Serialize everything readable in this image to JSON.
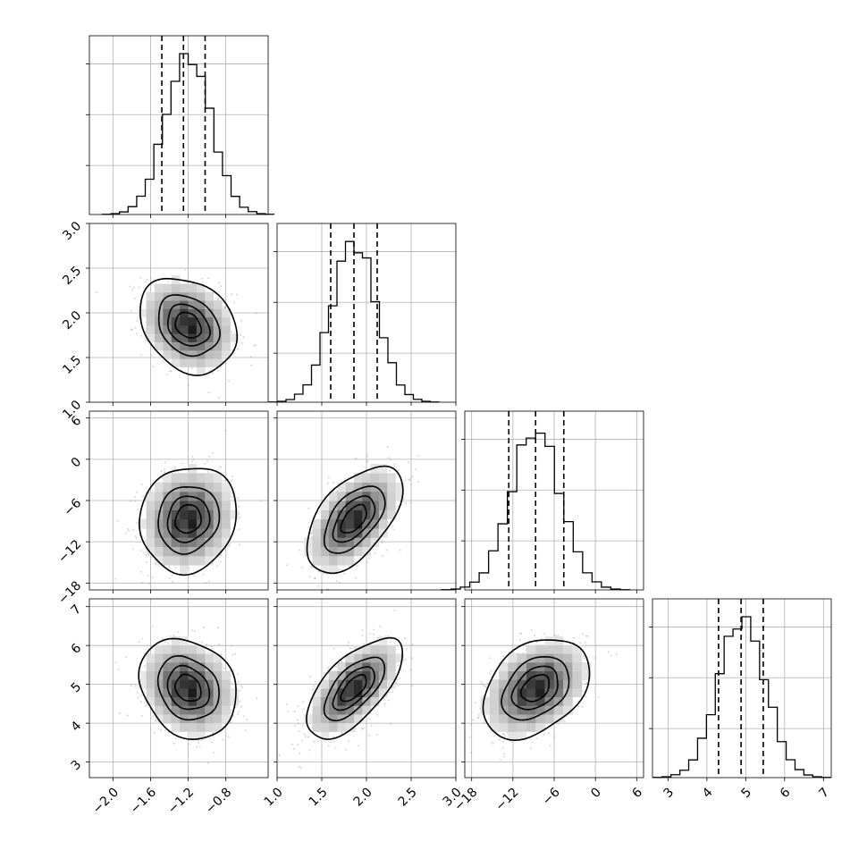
{
  "chart_data": {
    "type": "corner",
    "params": [
      {
        "key": "p1",
        "range": [
          -2.25,
          -0.35
        ],
        "ticks": [
          "−2.0",
          "−1.6",
          "−1.2",
          "−0.8"
        ],
        "tick_values": [
          -2.0,
          -1.6,
          -1.2,
          -0.8
        ],
        "mean": -1.2,
        "sd": 0.24,
        "quantiles": [
          -1.48,
          -1.25,
          -1.02
        ]
      },
      {
        "key": "p2",
        "range": [
          1.0,
          3.0
        ],
        "ticks": [
          "1.0",
          "1.5",
          "2.0",
          "2.5",
          "3.0"
        ],
        "tick_values": [
          1.0,
          1.5,
          2.0,
          2.5,
          3.0
        ],
        "mean": 1.86,
        "sd": 0.25,
        "quantiles": [
          1.6,
          1.86,
          2.12
        ]
      },
      {
        "key": "p3",
        "range": [
          -19,
          7
        ],
        "ticks": [
          "−18",
          "−12",
          "−6",
          "0",
          "6"
        ],
        "tick_values": [
          -18,
          -12,
          -6,
          0,
          6
        ],
        "mean": -8.7,
        "sd": 3.6,
        "quantiles": [
          -12.6,
          -8.7,
          -4.6
        ]
      },
      {
        "key": "p4",
        "range": [
          2.6,
          7.2
        ],
        "ticks": [
          "3",
          "4",
          "5",
          "6",
          "7"
        ],
        "tick_values": [
          3,
          4,
          5,
          6,
          7
        ],
        "mean": 4.9,
        "sd": 0.6,
        "quantiles": [
          4.3,
          4.88,
          5.45
        ]
      }
    ],
    "correlations": [
      {
        "pair": [
          "p1",
          "p2"
        ],
        "rho": -0.25
      },
      {
        "pair": [
          "p1",
          "p3"
        ],
        "rho": 0.1
      },
      {
        "pair": [
          "p2",
          "p3"
        ],
        "rho": 0.55
      },
      {
        "pair": [
          "p1",
          "p4"
        ],
        "rho": -0.2
      },
      {
        "pair": [
          "p2",
          "p4"
        ],
        "rho": 0.65
      },
      {
        "pair": [
          "p3",
          "p4"
        ],
        "rho": 0.35
      }
    ],
    "histogram_bins": 20,
    "contour_levels": [
      0.9,
      0.6,
      0.35,
      0.15
    ],
    "colors": {
      "line": "#000000",
      "grid": "#b0b0b0",
      "points": "#888888"
    },
    "grid": true
  }
}
